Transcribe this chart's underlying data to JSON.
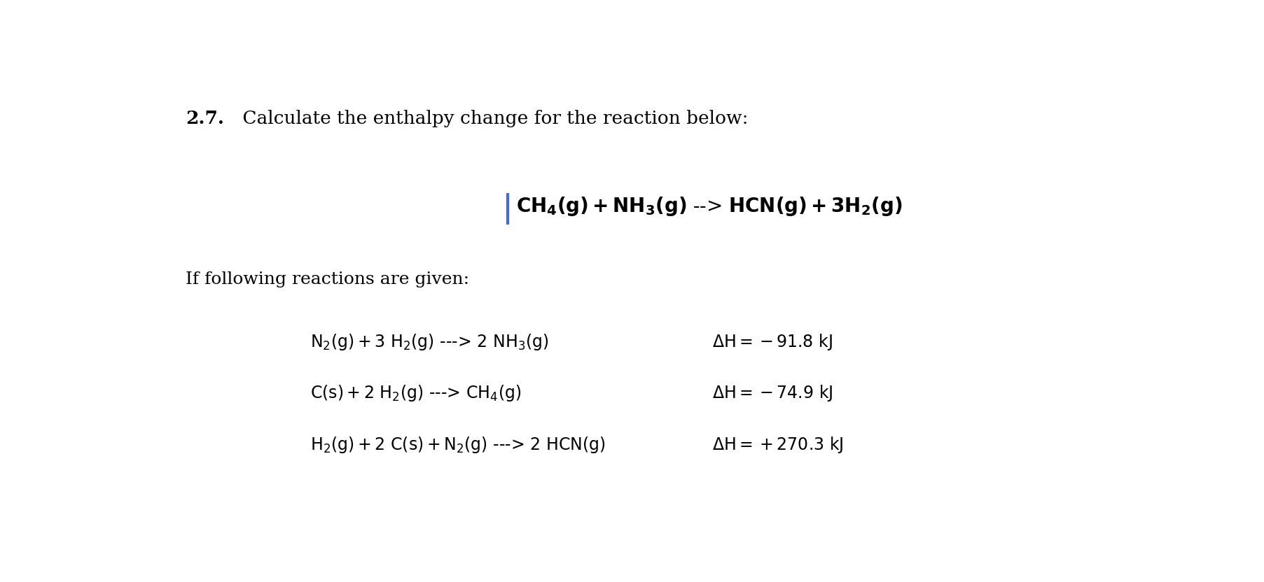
{
  "background_color": "#ffffff",
  "title_bold": "2.7.",
  "title_normal": " Calculate the enthalpy change for the reaction below:",
  "main_reaction": "$\\mathrm{CH_4(g) + NH_3(g) \\rightarrow HCN(g) + 3H_2(g)}$",
  "main_reaction_prefix": "|",
  "subtitle": "If following reactions are given:",
  "reactions": [
    {
      "equation": "$\\mathrm{N_2(g) + 3\\ H_2(g)\\ \\text{--->}\\ 2\\ NH_3(g)}$",
      "dH": "$\\mathrm{\\Delta H = -91.8\\ kJ}$"
    },
    {
      "equation": "$\\mathrm{C(s) + 2\\ H_2(g)\\ \\text{--->}\\ CH_4(g)}$",
      "dH": "$\\mathrm{\\Delta H = -74.9\\ kJ}$"
    },
    {
      "equation": "$\\mathrm{H_2(g) + 2\\ C(s) + N_2(g)\\ \\text{--->}\\ 2\\ HCN(g)}$",
      "dH": "$\\mathrm{\\Delta H = +270.3\\ kJ}$"
    }
  ],
  "bar_color": "#4169e1",
  "fig_width": 18.06,
  "fig_height": 8.32,
  "dpi": 100
}
